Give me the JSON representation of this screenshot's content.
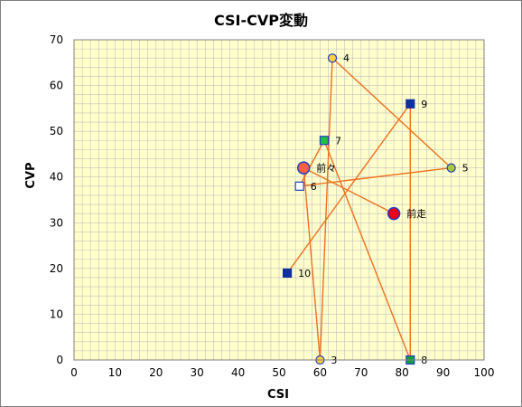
{
  "chart_data": {
    "type": "scatter",
    "title": "CSI-CVP変動",
    "xlabel": "CSI",
    "ylabel": "CVP",
    "xlim": [
      0,
      100
    ],
    "ylim": [
      0,
      70
    ],
    "x_ticks": [
      0,
      10,
      20,
      30,
      40,
      50,
      60,
      70,
      80,
      90,
      100
    ],
    "y_ticks": [
      0,
      10,
      20,
      30,
      40,
      50,
      60,
      70
    ],
    "grid": true,
    "plot_background": "#ffffcc",
    "grid_color": "#c0c0c0",
    "line_color": "#f07020",
    "points": [
      {
        "label": "前走",
        "x": 78,
        "y": 32,
        "marker": "circle-large",
        "fill": "#e8001c",
        "stroke": "#2040c0"
      },
      {
        "label": "前々",
        "x": 56,
        "y": 42,
        "marker": "circle-large",
        "fill": "#ff6040",
        "stroke": "#2040c0"
      },
      {
        "label": "3",
        "x": 60,
        "y": 0,
        "marker": "circle",
        "fill": "#ffd040",
        "stroke": "#2040c0"
      },
      {
        "label": "4",
        "x": 63,
        "y": 66,
        "marker": "circle",
        "fill": "#ffd040",
        "stroke": "#2040c0"
      },
      {
        "label": "5",
        "x": 92,
        "y": 42,
        "marker": "circle",
        "fill": "#a8c840",
        "stroke": "#2040c0"
      },
      {
        "label": "6",
        "x": 55,
        "y": 38,
        "marker": "square",
        "fill": "#ffffff",
        "stroke": "#2040c0"
      },
      {
        "label": "7",
        "x": 61,
        "y": 48,
        "marker": "square",
        "fill": "#20c040",
        "stroke": "#2040c0"
      },
      {
        "label": "8",
        "x": 82,
        "y": 0,
        "marker": "square",
        "fill": "#10a040",
        "stroke": "#2040c0"
      },
      {
        "label": "9",
        "x": 82,
        "y": 56,
        "marker": "square",
        "fill": "#1030a0",
        "stroke": "#1030a0"
      },
      {
        "label": "10",
        "x": 52,
        "y": 19,
        "marker": "square",
        "fill": "#1030a0",
        "stroke": "#1030a0"
      }
    ]
  }
}
